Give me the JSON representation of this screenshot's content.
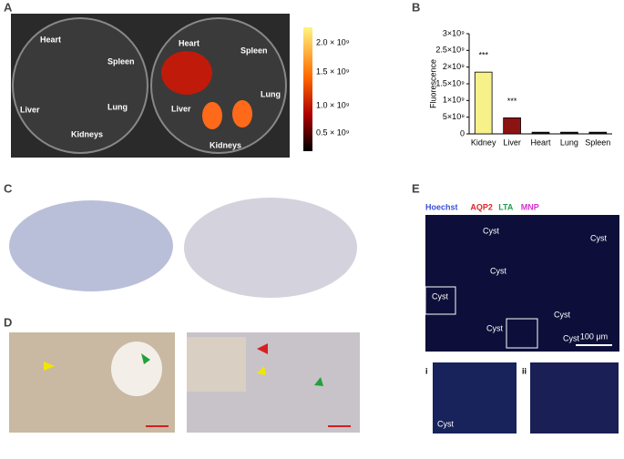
{
  "panel_labels": [
    "A",
    "B",
    "C",
    "D",
    "E"
  ],
  "panel_a": {
    "organ_labels": [
      "Heart",
      "Spleen",
      "Liver",
      "Lung",
      "Kidneys",
      "Heart",
      "Spleen",
      "Liver",
      "Lung",
      "Kidneys"
    ],
    "colorbar_labels": [
      "2.0 × 10⁹",
      "1.5 × 10⁹",
      "1.0 × 10⁹",
      "0.5 × 10⁹"
    ]
  },
  "chart_data": {
    "type": "bar",
    "ylabel": "Fluorescence",
    "categories": [
      "Kidney",
      "Liver",
      "Heart",
      "Lung",
      "Spleen"
    ],
    "values": [
      1850000000,
      480000000,
      50000000,
      50000000,
      50000000
    ],
    "colors": [
      "#f7f18a",
      "#8b1412",
      "#111111",
      "#111111",
      "#111111"
    ],
    "annotations": [
      "***",
      "***"
    ],
    "ylim": [
      0,
      3000000000
    ],
    "yticks": [
      0,
      {
        "value": 500000000,
        "label": "5×10⁸"
      },
      {
        "value": 1000000000,
        "label": "1×10⁹"
      },
      {
        "value": 1500000000,
        "label": "1.5×10⁹"
      },
      {
        "value": 2000000000,
        "label": "2×10⁹"
      },
      {
        "value": 2500000000,
        "label": "2.5×10⁹"
      },
      {
        "value": 3000000000,
        "label": "3×10⁹"
      }
    ]
  },
  "panel_e": {
    "channels": [
      "Hoechst",
      "AQP2",
      "LTA",
      "MNP"
    ],
    "cyst_labels": [
      "Cyst",
      "Cyst",
      "Cyst",
      "Cyst",
      "Cyst",
      "Cyst",
      "Cyst"
    ],
    "scale_bar": "100 μm",
    "insets": [
      "i",
      "ii"
    ],
    "inset_label": "Cyst"
  }
}
